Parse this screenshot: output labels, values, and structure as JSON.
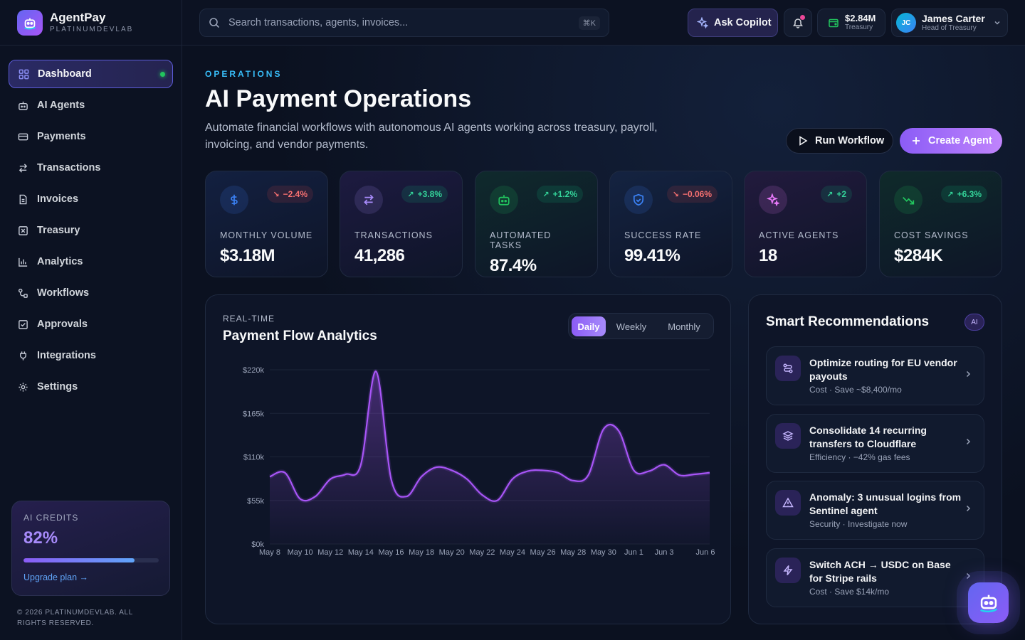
{
  "brand": {
    "name": "AgentPay",
    "sub": "PLATINUMDEVLAB"
  },
  "sidebar": {
    "items": [
      {
        "label": "Dashboard",
        "icon": "grid-icon",
        "active": true
      },
      {
        "label": "AI Agents",
        "icon": "bot-icon"
      },
      {
        "label": "Payments",
        "icon": "credit-card-icon"
      },
      {
        "label": "Transactions",
        "icon": "arrows-swap-icon"
      },
      {
        "label": "Invoices",
        "icon": "file-icon"
      },
      {
        "label": "Treasury",
        "icon": "vault-icon"
      },
      {
        "label": "Analytics",
        "icon": "bar-chart-icon"
      },
      {
        "label": "Workflows",
        "icon": "workflow-icon"
      },
      {
        "label": "Approvals",
        "icon": "check-square-icon"
      },
      {
        "label": "Integrations",
        "icon": "plug-icon"
      },
      {
        "label": "Settings",
        "icon": "gear-icon"
      }
    ],
    "credits": {
      "label": "AI CREDITS",
      "value": "82%",
      "fraction": 0.82,
      "link": "Upgrade plan →"
    },
    "copyright": "© 2026 PLATINUMDEVLAB. ALL RIGHTS RESERVED."
  },
  "topbar": {
    "search_placeholder": "Search transactions, agents, invoices...",
    "search_shortcut": "⌘K",
    "copilot_label": "Ask Copilot",
    "treasury": {
      "amount": "$2.84M",
      "label": "Treasury"
    },
    "user": {
      "initials": "JC",
      "name": "James Carter",
      "role": "Head of Treasury"
    }
  },
  "header": {
    "eyebrow": "OPERATIONS",
    "title": "AI Payment Operations",
    "description": "Automate financial workflows with autonomous AI agents working across treasury, payroll, invoicing, and vendor payments.",
    "run_label": "Run Workflow",
    "create_label": "Create Agent"
  },
  "stats": [
    {
      "label": "MONTHLY VOLUME",
      "value": "$3.18M",
      "delta": "−2.4%",
      "trend": "down",
      "icon": "dollar-icon",
      "accent": "#3b82f6"
    },
    {
      "label": "TRANSACTIONS",
      "value": "41,286",
      "delta": "+3.8%",
      "trend": "up",
      "icon": "arrows-swap-icon",
      "accent": "#a78bfa"
    },
    {
      "label": "AUTOMATED TASKS",
      "value": "87.4%",
      "delta": "+1.2%",
      "trend": "up",
      "icon": "bot-icon",
      "accent": "#22c55e"
    },
    {
      "label": "SUCCESS RATE",
      "value": "99.41%",
      "delta": "−0.06%",
      "trend": "down",
      "icon": "shield-icon",
      "accent": "#3b82f6"
    },
    {
      "label": "ACTIVE AGENTS",
      "value": "18",
      "delta": "+2",
      "trend": "up",
      "icon": "sparkle-icon",
      "accent": "#e879f9"
    },
    {
      "label": "COST SAVINGS",
      "value": "$284K",
      "delta": "+6.3%",
      "trend": "up",
      "icon": "trend-down-icon",
      "accent": "#22c55e"
    }
  ],
  "chart": {
    "eyebrow": "REAL-TIME",
    "title": "Payment Flow Analytics",
    "tabs": [
      "Daily",
      "Weekly",
      "Monthly"
    ],
    "active_tab": "Daily"
  },
  "chart_data": {
    "type": "area",
    "x": [
      "May 8",
      "May 9",
      "May 10",
      "May 11",
      "May 12",
      "May 13",
      "May 14",
      "May 15",
      "May 16",
      "May 17",
      "May 18",
      "May 19",
      "May 20",
      "May 21",
      "May 22",
      "May 23",
      "May 24",
      "May 25",
      "May 26",
      "May 27",
      "May 28",
      "May 29",
      "May 30",
      "May 31",
      "Jun 1",
      "Jun 2",
      "Jun 3",
      "Jun 4",
      "Jun 5",
      "Jun 6"
    ],
    "x_ticks": [
      "May 8",
      "May 10",
      "May 12",
      "May 14",
      "May 16",
      "May 18",
      "May 20",
      "May 22",
      "May 24",
      "May 26",
      "May 28",
      "May 30",
      "Jun 1",
      "Jun 3",
      "Jun 6"
    ],
    "values": [
      85000,
      90000,
      57000,
      60000,
      82000,
      88000,
      100000,
      218000,
      82000,
      60000,
      85000,
      97000,
      93000,
      82000,
      62000,
      55000,
      82000,
      92000,
      93000,
      90000,
      80000,
      87000,
      145000,
      143000,
      93000,
      92000,
      100000,
      87000,
      88000,
      90000
    ],
    "yticks": [
      "$0k",
      "$55k",
      "$110k",
      "$165k",
      "$220k"
    ],
    "ylim": [
      0,
      220000
    ],
    "color": "#a855f7",
    "grid": true
  },
  "recommendations": {
    "title": "Smart Recommendations",
    "badge": "AI",
    "items": [
      {
        "title": "Optimize routing for EU vendor payouts",
        "sub": "Cost · Save ~$8,400/mo",
        "icon": "route-icon"
      },
      {
        "title": "Consolidate 14 recurring transfers to Cloudflare",
        "sub": "Efficiency · −42% gas fees",
        "icon": "layers-icon"
      },
      {
        "title": "Anomaly: 3 unusual logins from Sentinel agent",
        "sub": "Security · Investigate now",
        "icon": "warning-icon"
      },
      {
        "title": "Switch ACH → USDC on Base for Stripe rails",
        "sub": "Cost · Save $14k/mo",
        "icon": "lightning-icon"
      }
    ]
  }
}
